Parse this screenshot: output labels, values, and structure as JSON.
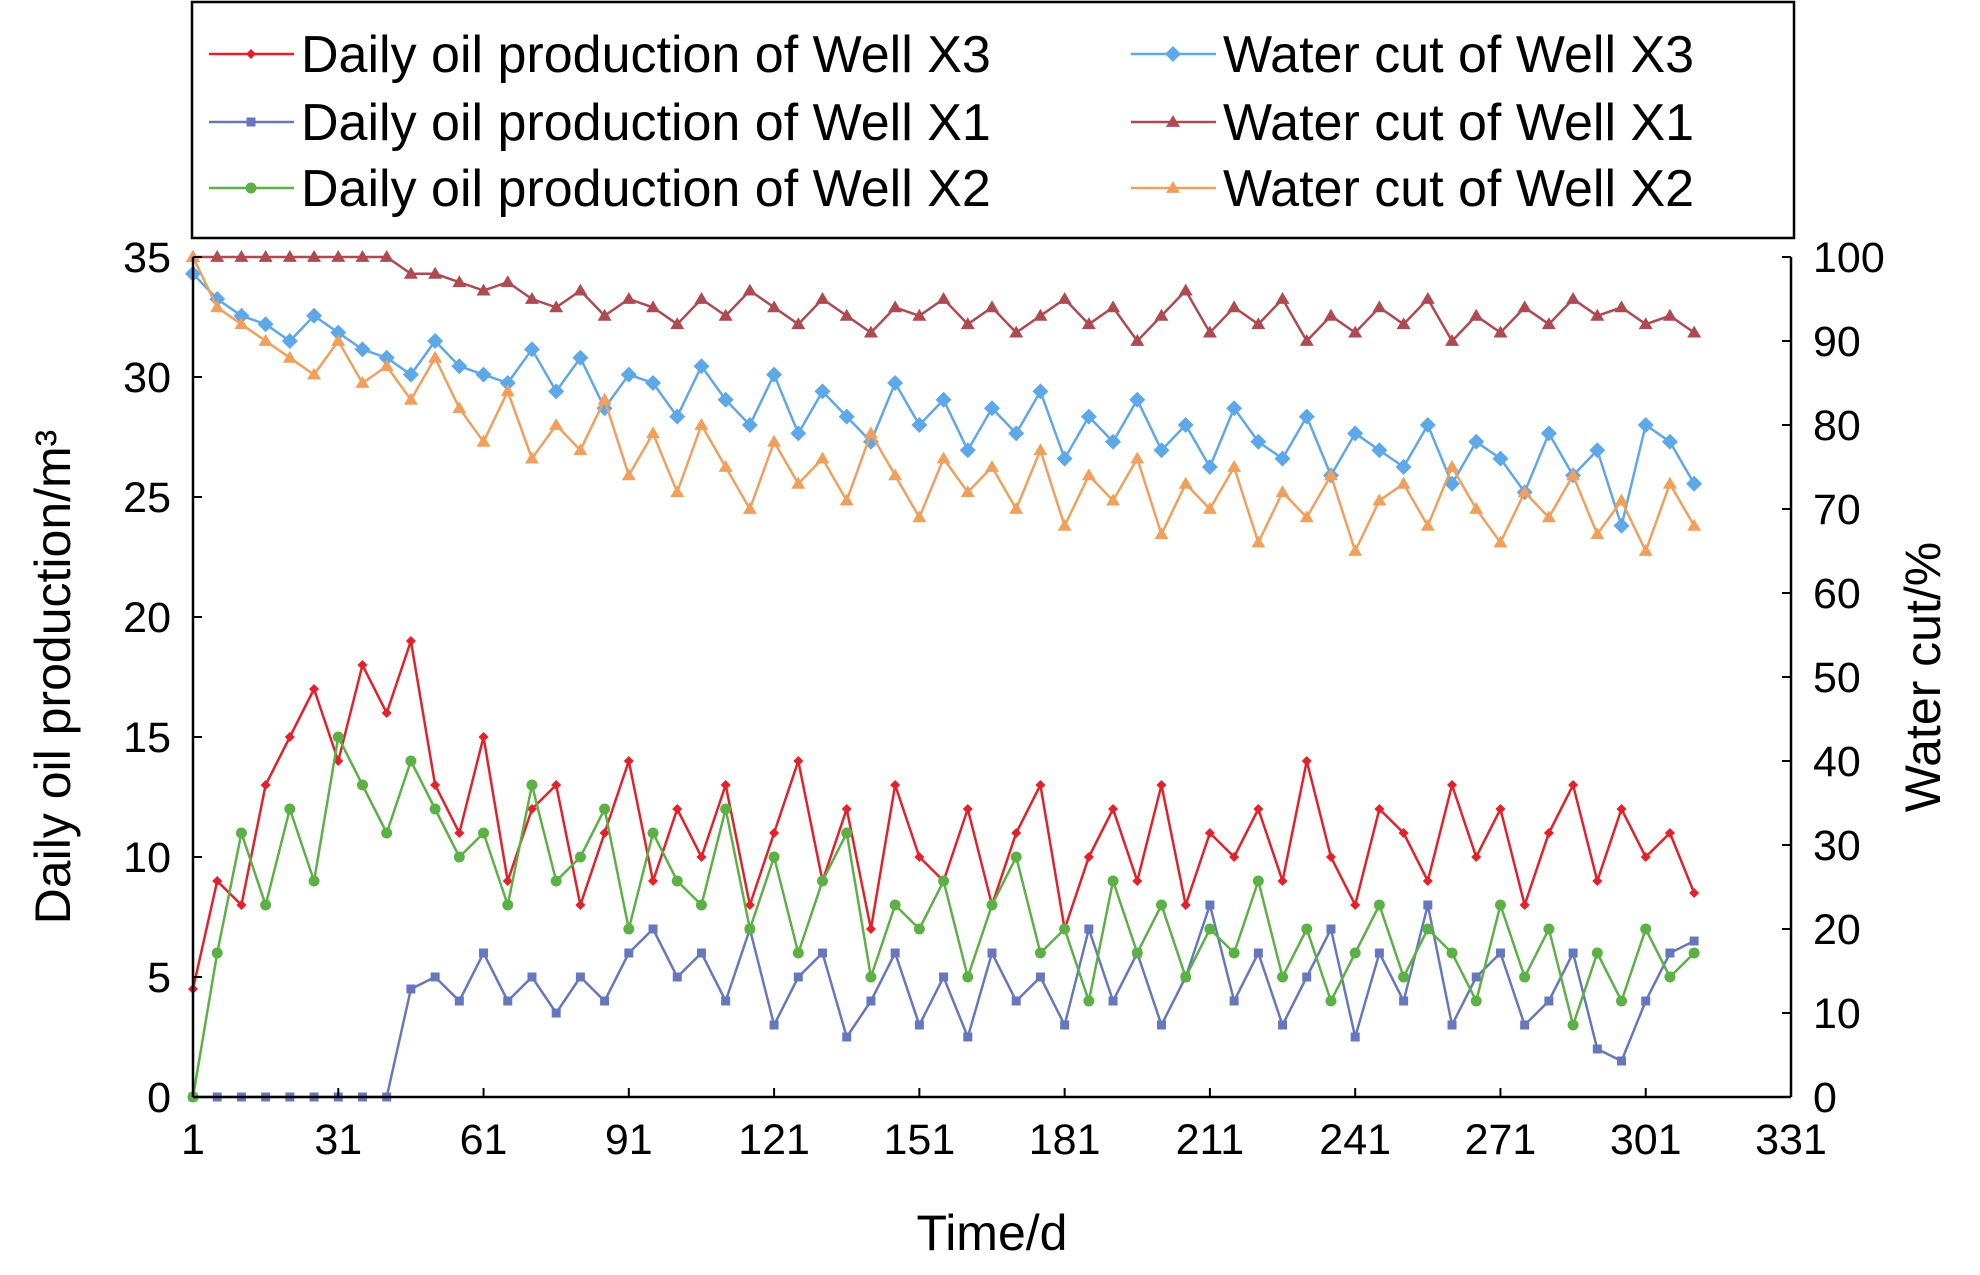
{
  "chart_data": {
    "type": "line",
    "xlabel": "Time/d",
    "ylabel": "Daily oil production/m³",
    "y2label": "Water cut/%",
    "xlim": [
      1,
      331
    ],
    "ylim": [
      0,
      35
    ],
    "y2lim": [
      0,
      100
    ],
    "xticks": [
      1,
      31,
      61,
      91,
      121,
      151,
      181,
      211,
      241,
      271,
      301,
      331
    ],
    "yticks": [
      0,
      5,
      10,
      15,
      20,
      25,
      30,
      35
    ],
    "y2ticks": [
      0,
      10,
      20,
      30,
      40,
      50,
      60,
      70,
      80,
      90,
      100
    ],
    "grid": false,
    "legend_position": "top",
    "x": [
      1,
      6,
      11,
      16,
      21,
      26,
      31,
      36,
      41,
      46,
      51,
      56,
      61,
      66,
      71,
      76,
      81,
      86,
      91,
      96,
      101,
      106,
      111,
      116,
      121,
      126,
      131,
      136,
      141,
      146,
      151,
      156,
      161,
      166,
      171,
      176,
      181,
      186,
      191,
      196,
      201,
      206,
      211,
      216,
      221,
      226,
      231,
      236,
      241,
      246,
      251,
      256,
      261,
      266,
      271,
      276,
      281,
      286,
      291,
      296,
      301,
      306,
      311
    ],
    "series": [
      {
        "name": "Daily oil production of Well X3",
        "axis": "left",
        "marker": "diamond",
        "color": "#e3212b",
        "values": [
          4.5,
          9,
          8,
          13,
          15,
          17,
          14,
          18,
          16,
          19,
          13,
          11,
          15,
          9,
          12,
          13,
          8,
          11,
          14,
          9,
          12,
          10,
          13,
          8,
          11,
          14,
          9,
          12,
          7,
          13,
          10,
          9,
          12,
          8,
          11,
          13,
          7,
          10,
          12,
          9,
          13,
          8,
          11,
          10,
          12,
          9,
          14,
          10,
          8,
          12,
          11,
          9,
          13,
          10,
          12,
          8,
          11,
          13,
          9,
          12,
          10,
          11,
          8.5
        ]
      },
      {
        "name": "Daily oil production of Well X1",
        "axis": "left",
        "marker": "square",
        "color": "#6678bd",
        "values": [
          0,
          0,
          0,
          0,
          0,
          0,
          0,
          0,
          0,
          4.5,
          5,
          4,
          6,
          4,
          5,
          3.5,
          5,
          4,
          6,
          7,
          5,
          6,
          4,
          7,
          3,
          5,
          6,
          2.5,
          4,
          6,
          3,
          5,
          2.5,
          6,
          4,
          5,
          3,
          7,
          4,
          6,
          3,
          5,
          8,
          4,
          6,
          3,
          5,
          7,
          2.5,
          6,
          4,
          8,
          3,
          5,
          6,
          3,
          4,
          6,
          2,
          1.5,
          4,
          6,
          6.5
        ]
      },
      {
        "name": "Daily oil production of Well X2",
        "axis": "left",
        "marker": "circle",
        "color": "#5cb146",
        "values": [
          0,
          6,
          11,
          8,
          12,
          9,
          15,
          13,
          11,
          14,
          12,
          10,
          11,
          8,
          13,
          9,
          10,
          12,
          7,
          11,
          9,
          8,
          12,
          7,
          10,
          6,
          9,
          11,
          5,
          8,
          7,
          9,
          5,
          8,
          10,
          6,
          7,
          4,
          9,
          6,
          8,
          5,
          7,
          6,
          9,
          5,
          7,
          4,
          6,
          8,
          5,
          7,
          6,
          4,
          8,
          5,
          7,
          3,
          6,
          4,
          7,
          5,
          6
        ]
      },
      {
        "name": "Water cut of Well X3",
        "axis": "right",
        "marker": "diamond-large",
        "color": "#5fa8e8",
        "values": [
          98,
          95,
          93,
          92,
          90,
          93,
          91,
          89,
          88,
          86,
          90,
          87,
          86,
          85,
          89,
          84,
          88,
          82,
          86,
          85,
          81,
          87,
          83,
          80,
          86,
          79,
          84,
          81,
          78,
          85,
          80,
          83,
          77,
          82,
          79,
          84,
          76,
          81,
          78,
          83,
          77,
          80,
          75,
          82,
          78,
          76,
          81,
          74,
          79,
          77,
          75,
          80,
          73,
          78,
          76,
          72,
          79,
          74,
          77,
          68,
          80,
          78,
          73
        ]
      },
      {
        "name": "Water cut of Well X1",
        "axis": "right",
        "marker": "triangle",
        "color": "#ae4a52",
        "values": [
          100,
          100,
          100,
          100,
          100,
          100,
          100,
          100,
          100,
          98,
          98,
          97,
          96,
          97,
          95,
          94,
          96,
          93,
          95,
          94,
          92,
          95,
          93,
          96,
          94,
          92,
          95,
          93,
          91,
          94,
          93,
          95,
          92,
          94,
          91,
          93,
          95,
          92,
          94,
          90,
          93,
          96,
          91,
          94,
          92,
          95,
          90,
          93,
          91,
          94,
          92,
          95,
          90,
          93,
          91,
          94,
          92,
          95,
          93,
          94,
          92,
          93,
          91
        ]
      },
      {
        "name": "Water cut of Well X2",
        "axis": "right",
        "marker": "triangle",
        "color": "#f0a05c",
        "values": [
          100,
          94,
          92,
          90,
          88,
          86,
          90,
          85,
          87,
          83,
          88,
          82,
          78,
          84,
          76,
          80,
          77,
          83,
          74,
          79,
          72,
          80,
          75,
          70,
          78,
          73,
          76,
          71,
          79,
          74,
          69,
          76,
          72,
          75,
          70,
          77,
          68,
          74,
          71,
          76,
          67,
          73,
          70,
          75,
          66,
          72,
          69,
          74,
          65,
          71,
          73,
          68,
          75,
          70,
          66,
          72,
          69,
          74,
          67,
          71,
          65,
          73,
          68
        ]
      }
    ]
  }
}
